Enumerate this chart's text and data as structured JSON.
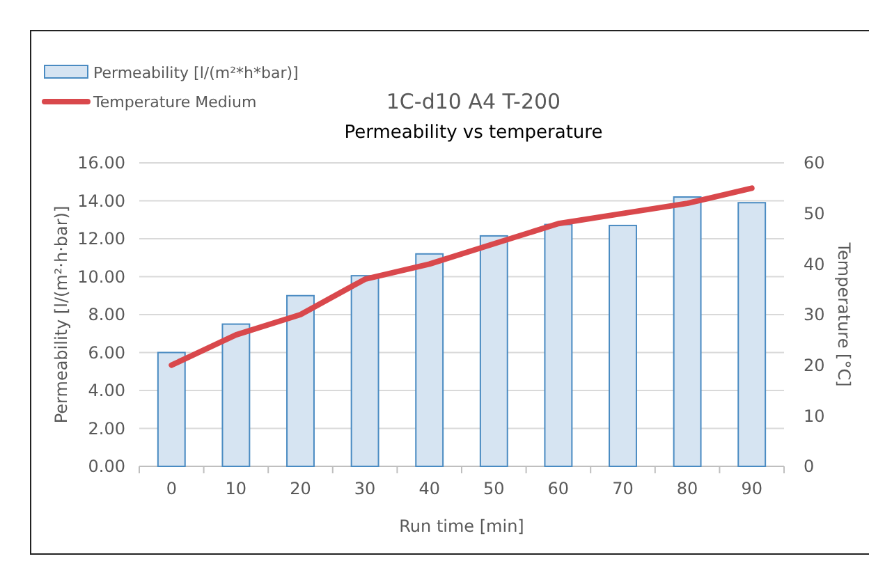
{
  "chart_data": {
    "type": "bar",
    "title": "1C-d10 A4 T-200",
    "subtitle": "Permeability vs temperature",
    "xlabel": "Run time [min]",
    "ylabel": "Permeability [l/(m²·h·bar)]",
    "y2label": "Temperature [°C]",
    "categories": [
      "0",
      "10",
      "20",
      "30",
      "40",
      "50",
      "60",
      "70",
      "80",
      "90"
    ],
    "series": [
      {
        "name": "Permeability [l/(m²*h*bar)]",
        "color": "#d6e4f2",
        "values": [
          6.0,
          7.5,
          9.0,
          10.05,
          11.2,
          12.15,
          12.75,
          12.7,
          14.2,
          13.9
        ]
      },
      {
        "name": "Temperature Medium",
        "type": "line",
        "axis": "y2",
        "color": "#d9484c",
        "values": [
          20,
          26,
          30,
          37,
          40,
          44,
          48,
          50,
          52,
          55
        ]
      }
    ],
    "ylim": [
      0,
      16
    ],
    "yticks": [
      {
        "value": 0,
        "label": "0.00"
      },
      {
        "value": 2,
        "label": "2.00"
      },
      {
        "value": 4,
        "label": "4.00"
      },
      {
        "value": 6,
        "label": "6.00"
      },
      {
        "value": 8,
        "label": "8.00"
      },
      {
        "value": 10,
        "label": "10.00"
      },
      {
        "value": 12,
        "label": "12.00"
      },
      {
        "value": 14,
        "label": "14.00"
      },
      {
        "value": 16,
        "label": "16.00"
      }
    ],
    "y2lim": [
      0,
      60
    ],
    "y2ticks": [
      0,
      10,
      20,
      30,
      40,
      50,
      60
    ],
    "grid": "y",
    "legend": "top left"
  }
}
